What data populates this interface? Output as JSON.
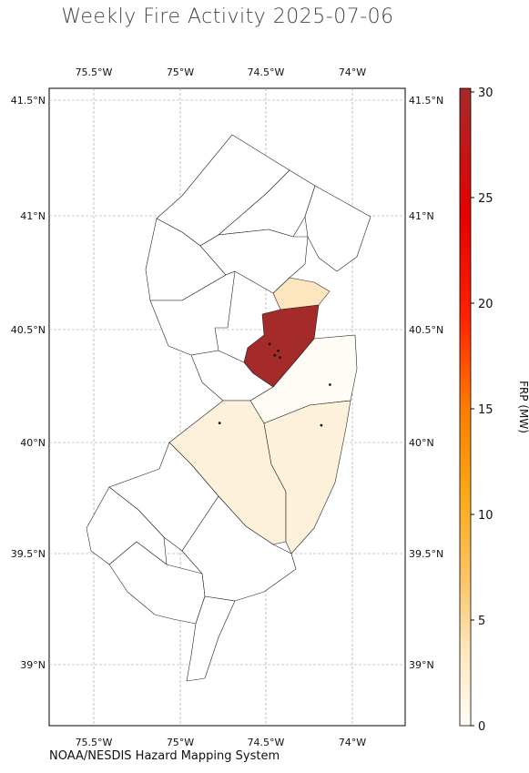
{
  "title": "Weekly Fire Activity 2025-07-06",
  "credit": "NOAA/NESDIS Hazard Mapping System",
  "colorbar": {
    "label": "FRP (MW)",
    "ticks": [
      "0",
      "5",
      "10",
      "15",
      "20",
      "25",
      "30"
    ],
    "min": 0,
    "max": 30,
    "colors": [
      "#fffcf5",
      "#fde6bd",
      "#fcc66e",
      "#fba919",
      "#ff7b00",
      "#ff2200",
      "#e60000",
      "#a52a2a"
    ]
  },
  "axes": {
    "lon_ticks": [
      "75.5°W",
      "75°W",
      "74.5°W",
      "74°W"
    ],
    "lat_ticks": [
      "41.5°N",
      "41°N",
      "40.5°N",
      "40°N",
      "39.5°N",
      "39°N"
    ],
    "lon_range": [
      -75.78,
      -73.72
    ],
    "lat_range": [
      38.72,
      41.56
    ],
    "grid": true
  },
  "counties": [
    {
      "id": "hunterdon-somerset-central",
      "frp": 30,
      "color": "#a52a2a"
    },
    {
      "id": "middlesex-union",
      "frp": 30,
      "color": "#a52a2a"
    },
    {
      "id": "essex-upper",
      "frp": 3,
      "color": "#fde6bd"
    },
    {
      "id": "monmouth",
      "frp": 0.5,
      "color": "#fffcf5"
    },
    {
      "id": "burlington",
      "frp": 1.5,
      "color": "#fef1dc"
    },
    {
      "id": "ocean",
      "frp": 1.5,
      "color": "#fef1dc"
    }
  ],
  "fire_points": [
    {
      "lon": -74.48,
      "lat": 40.42
    },
    {
      "lon": -74.43,
      "lat": 40.39
    },
    {
      "lon": -74.45,
      "lat": 40.37
    },
    {
      "lon": -74.42,
      "lat": 40.36
    },
    {
      "lon": -74.13,
      "lat": 40.24
    },
    {
      "lon": -74.77,
      "lat": 40.07
    },
    {
      "lon": -74.18,
      "lat": 40.06
    }
  ]
}
